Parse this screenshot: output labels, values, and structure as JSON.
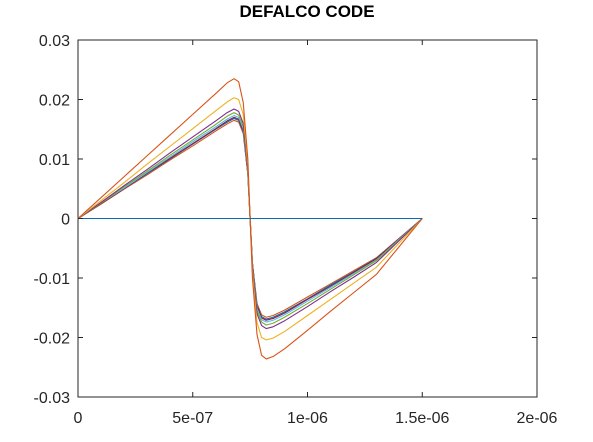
{
  "chart_data": {
    "type": "line",
    "title": "DEFALCO CODE",
    "xlabel": "",
    "ylabel": "",
    "xlim": [
      0,
      2e-06
    ],
    "ylim": [
      -0.03,
      0.03
    ],
    "x_ticks": [
      0,
      5e-07,
      1e-06,
      1.5e-06,
      2e-06
    ],
    "x_tick_labels": [
      "0",
      "5e-07",
      "1e-06",
      "1.5e-06",
      "2e-06"
    ],
    "y_ticks": [
      -0.03,
      -0.02,
      -0.01,
      0,
      0.01,
      0.02,
      0.03
    ],
    "y_tick_labels": [
      "-0.03",
      "-0.02",
      "-0.01",
      "0",
      "0.01",
      "0.02",
      "0.03"
    ],
    "grid": false,
    "legend": "none",
    "series": [
      {
        "color": "#0072bd",
        "x": [
          0,
          1.5e-06
        ],
        "y": [
          0,
          0
        ]
      },
      {
        "color": "#d95319",
        "x": [
          0,
          1e-07,
          2e-07,
          3e-07,
          4e-07,
          5e-07,
          6e-07,
          6.5e-07,
          6.8e-07,
          7e-07,
          7.2e-07,
          7.4e-07,
          7.5e-07,
          7.6e-07,
          7.8e-07,
          8e-07,
          8.2e-07,
          8.5e-07,
          9e-07,
          1e-06,
          1.1e-06,
          1.2e-06,
          1.3e-06,
          1.4e-06,
          1.5e-06
        ],
        "y": [
          0,
          0.0035,
          0.007,
          0.0105,
          0.014,
          0.0175,
          0.021,
          0.0228,
          0.0235,
          0.023,
          0.0195,
          0.01,
          0,
          -0.01,
          -0.0195,
          -0.023,
          -0.0236,
          -0.0232,
          -0.0219,
          -0.0188,
          -0.0156,
          -0.0125,
          -0.0094,
          -0.0047,
          0
        ]
      },
      {
        "color": "#edb120",
        "x": [
          0,
          1e-07,
          2e-07,
          3e-07,
          4e-07,
          5e-07,
          6e-07,
          6.5e-07,
          6.8e-07,
          7e-07,
          7.2e-07,
          7.4e-07,
          7.5e-07,
          7.6e-07,
          7.8e-07,
          8e-07,
          8.2e-07,
          8.5e-07,
          9e-07,
          1e-06,
          1.1e-06,
          1.2e-06,
          1.3e-06,
          1.4e-06,
          1.5e-06
        ],
        "y": [
          0,
          0.003,
          0.006,
          0.0091,
          0.0121,
          0.0151,
          0.0181,
          0.0196,
          0.0203,
          0.02,
          0.0175,
          0.009,
          0,
          -0.009,
          -0.0175,
          -0.02,
          -0.0204,
          -0.0201,
          -0.019,
          -0.0163,
          -0.0136,
          -0.0109,
          -0.0082,
          -0.0041,
          0
        ]
      },
      {
        "color": "#7e2f8e",
        "x": [
          0,
          1e-07,
          2e-07,
          3e-07,
          4e-07,
          5e-07,
          6e-07,
          6.5e-07,
          6.8e-07,
          7e-07,
          7.2e-07,
          7.4e-07,
          7.5e-07,
          7.6e-07,
          7.8e-07,
          8e-07,
          8.2e-07,
          8.5e-07,
          9e-07,
          1e-06,
          1.1e-06,
          1.2e-06,
          1.3e-06,
          1.4e-06,
          1.5e-06
        ],
        "y": [
          0,
          0.0027,
          0.0055,
          0.0082,
          0.011,
          0.0137,
          0.0164,
          0.0178,
          0.0184,
          0.018,
          0.016,
          0.0082,
          0,
          -0.0082,
          -0.016,
          -0.018,
          -0.0185,
          -0.0182,
          -0.0172,
          -0.0148,
          -0.0123,
          -0.0099,
          -0.0074,
          -0.0037,
          0
        ]
      },
      {
        "color": "#77ac30",
        "x": [
          0,
          1e-07,
          2e-07,
          3e-07,
          4e-07,
          5e-07,
          6e-07,
          6.5e-07,
          6.8e-07,
          7e-07,
          7.2e-07,
          7.4e-07,
          7.5e-07,
          7.6e-07,
          7.8e-07,
          8e-07,
          8.2e-07,
          8.5e-07,
          9e-07,
          1e-06,
          1.1e-06,
          1.2e-06,
          1.3e-06,
          1.4e-06,
          1.5e-06
        ],
        "y": [
          0,
          0.0026,
          0.0053,
          0.0079,
          0.0106,
          0.0132,
          0.0158,
          0.0172,
          0.0178,
          0.0174,
          0.0155,
          0.0079,
          0,
          -0.0079,
          -0.0155,
          -0.0174,
          -0.0179,
          -0.0176,
          -0.0166,
          -0.0143,
          -0.0119,
          -0.0095,
          -0.0071,
          -0.0036,
          0
        ]
      },
      {
        "color": "#4dbeee",
        "x": [
          0,
          1e-07,
          2e-07,
          3e-07,
          4e-07,
          5e-07,
          6e-07,
          6.5e-07,
          6.8e-07,
          7e-07,
          7.2e-07,
          7.4e-07,
          7.5e-07,
          7.6e-07,
          7.8e-07,
          8e-07,
          8.2e-07,
          8.5e-07,
          9e-07,
          1e-06,
          1.1e-06,
          1.2e-06,
          1.3e-06,
          1.4e-06,
          1.5e-06
        ],
        "y": [
          0,
          0.0026,
          0.0051,
          0.0077,
          0.0103,
          0.0129,
          0.0154,
          0.0167,
          0.0173,
          0.017,
          0.0151,
          0.0077,
          0,
          -0.0077,
          -0.0151,
          -0.017,
          -0.0174,
          -0.0171,
          -0.0162,
          -0.0139,
          -0.0116,
          -0.0093,
          -0.007,
          -0.0035,
          0
        ]
      },
      {
        "color": "#a2142f",
        "x": [
          0,
          1e-07,
          2e-07,
          3e-07,
          4e-07,
          5e-07,
          6e-07,
          6.5e-07,
          6.8e-07,
          7e-07,
          7.2e-07,
          7.4e-07,
          7.5e-07,
          7.6e-07,
          7.8e-07,
          8e-07,
          8.2e-07,
          8.5e-07,
          9e-07,
          1e-06,
          1.1e-06,
          1.2e-06,
          1.3e-06,
          1.4e-06,
          1.5e-06
        ],
        "y": [
          0,
          0.0025,
          0.005,
          0.0076,
          0.0101,
          0.0126,
          0.0151,
          0.0164,
          0.017,
          0.0167,
          0.0148,
          0.0076,
          0,
          -0.0076,
          -0.0148,
          -0.0167,
          -0.0171,
          -0.0168,
          -0.0159,
          -0.0136,
          -0.0114,
          -0.0091,
          -0.0068,
          -0.0034,
          0
        ]
      },
      {
        "color": "#0072bd",
        "x": [
          0,
          1e-07,
          2e-07,
          3e-07,
          4e-07,
          5e-07,
          6e-07,
          6.5e-07,
          6.8e-07,
          7e-07,
          7.2e-07,
          7.4e-07,
          7.5e-07,
          7.6e-07,
          7.8e-07,
          8e-07,
          8.2e-07,
          8.5e-07,
          9e-07,
          1e-06,
          1.1e-06,
          1.2e-06,
          1.3e-06,
          1.4e-06,
          1.5e-06
        ],
        "y": [
          0,
          0.0025,
          0.005,
          0.0075,
          0.01,
          0.0125,
          0.015,
          0.0162,
          0.0168,
          0.0165,
          0.0146,
          0.0075,
          0,
          -0.0075,
          -0.0146,
          -0.0165,
          -0.0169,
          -0.0166,
          -0.0157,
          -0.0135,
          -0.0112,
          -0.009,
          -0.0067,
          -0.0034,
          0
        ]
      },
      {
        "color": "#d95319",
        "x": [
          0,
          1e-07,
          2e-07,
          3e-07,
          4e-07,
          5e-07,
          6e-07,
          6.5e-07,
          6.8e-07,
          7e-07,
          7.2e-07,
          7.4e-07,
          7.5e-07,
          7.6e-07,
          7.8e-07,
          8e-07,
          8.2e-07,
          8.5e-07,
          9e-07,
          1e-06,
          1.1e-06,
          1.2e-06,
          1.3e-06,
          1.4e-06,
          1.5e-06
        ],
        "y": [
          0,
          0.0024,
          0.0049,
          0.0073,
          0.0098,
          0.0122,
          0.0147,
          0.0159,
          0.0165,
          0.0162,
          0.0143,
          0.0074,
          0,
          -0.0074,
          -0.0143,
          -0.0162,
          -0.0166,
          -0.0163,
          -0.0154,
          -0.0132,
          -0.011,
          -0.0088,
          -0.0066,
          -0.0033,
          0
        ]
      }
    ]
  }
}
